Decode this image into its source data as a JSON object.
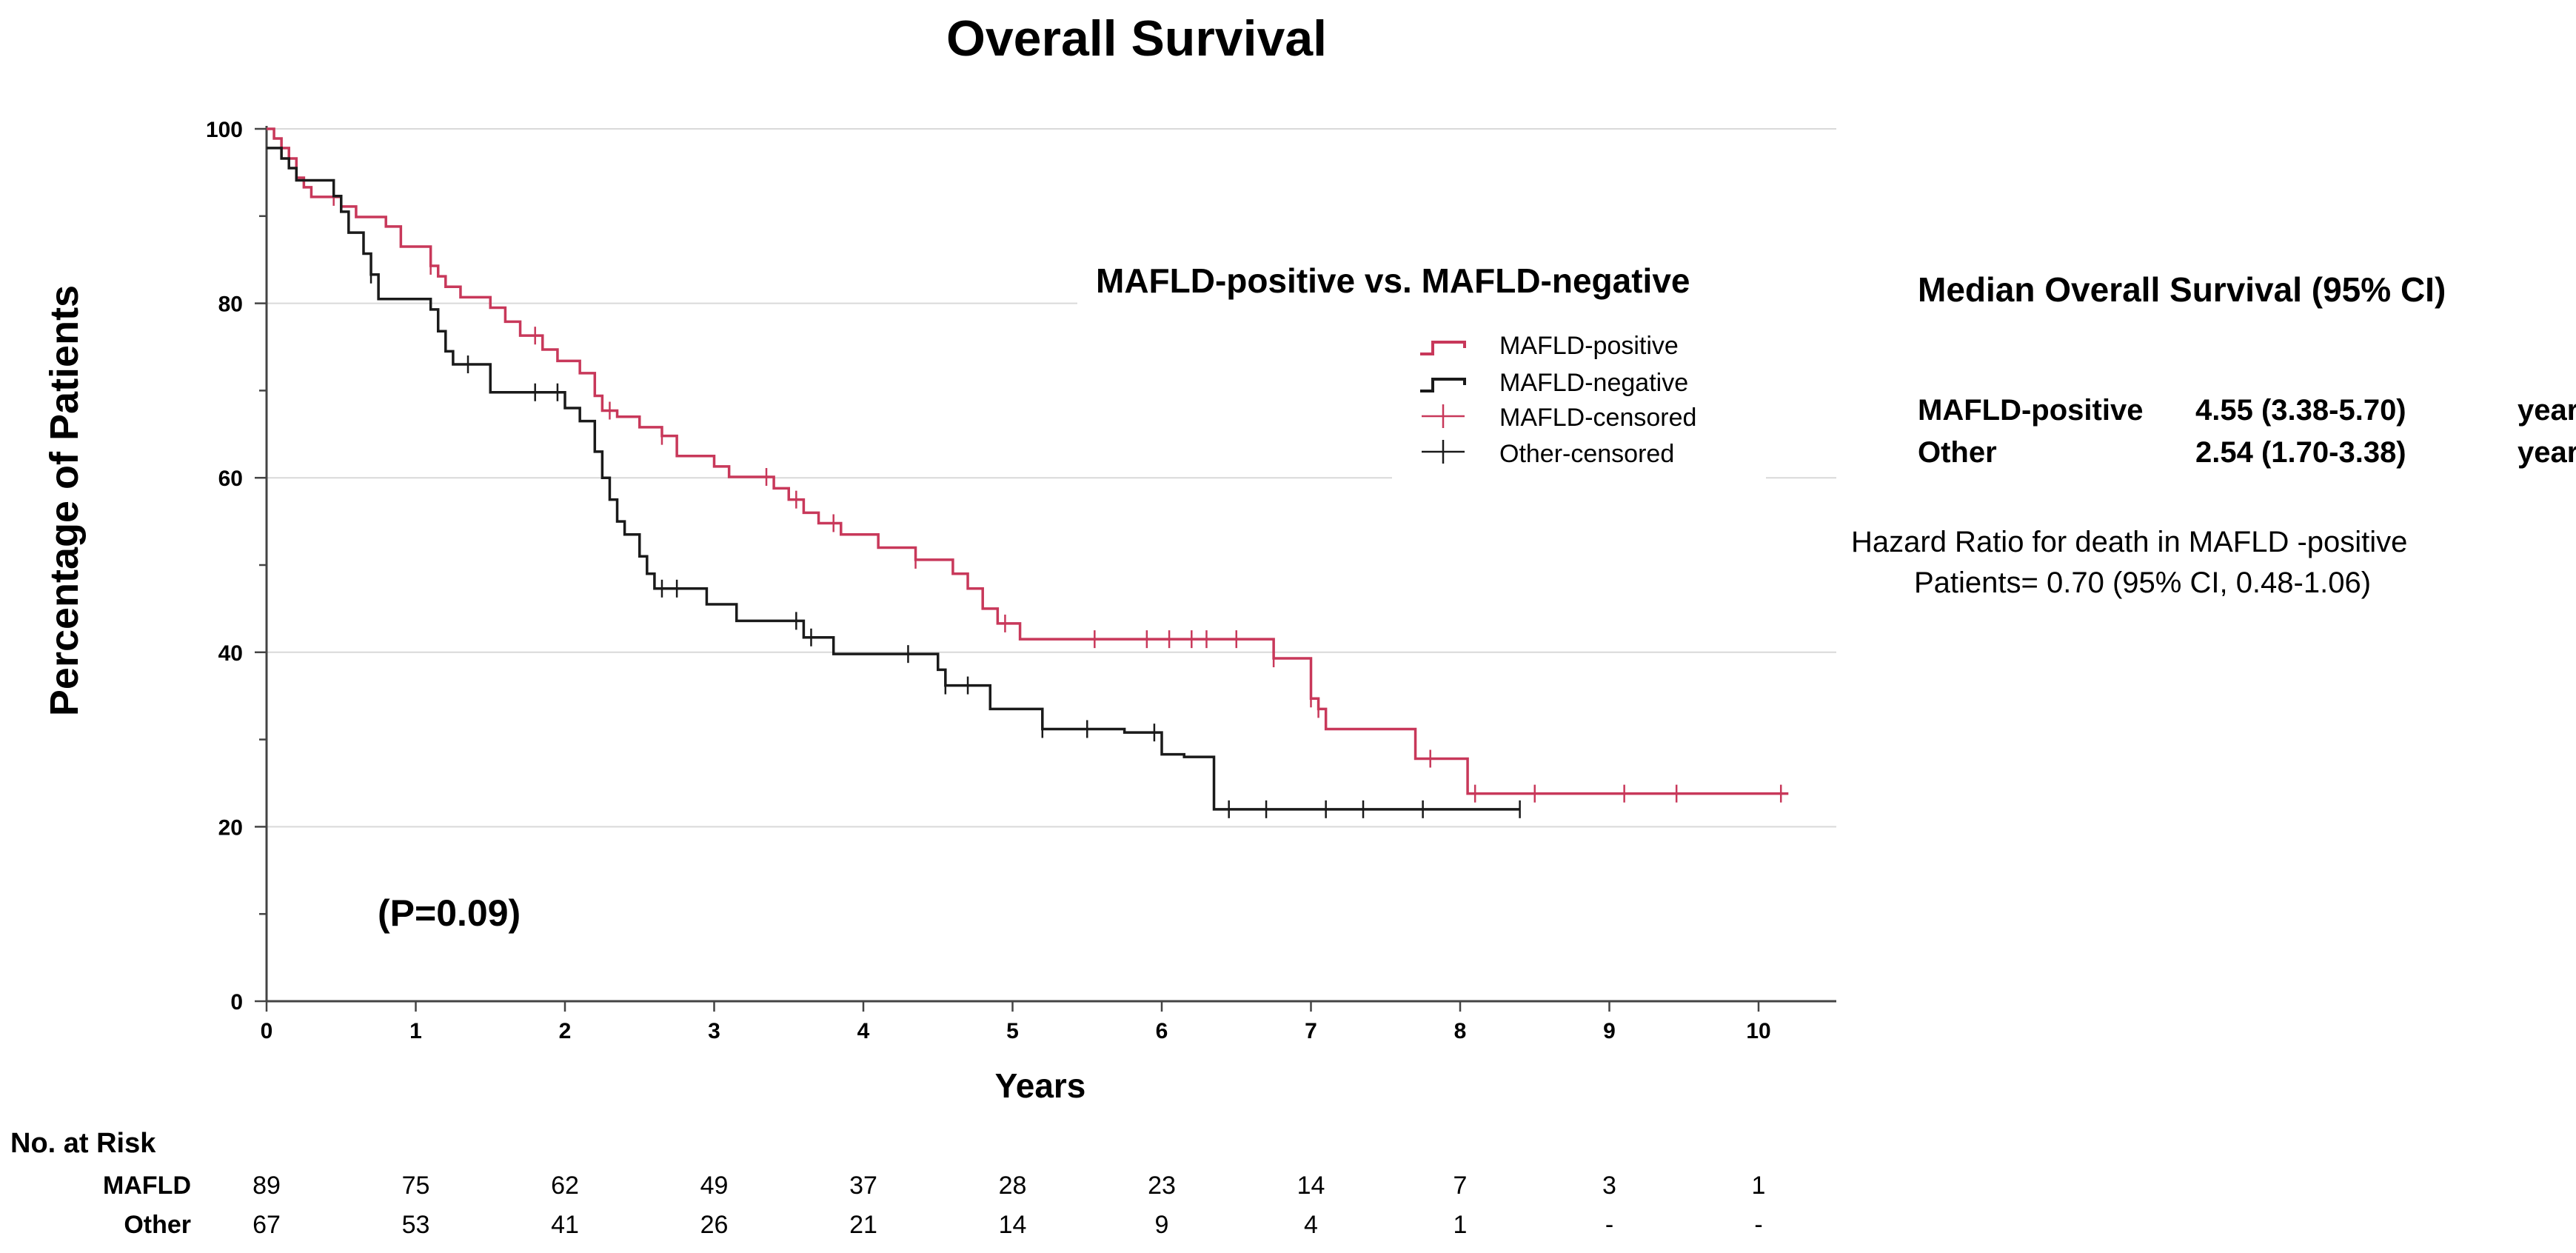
{
  "chart_data": {
    "type": "line",
    "title": "Overall Survival",
    "xlabel": "Years",
    "ylabel": "Percentage of Patients",
    "xlim": [
      0,
      10.5
    ],
    "ylim": [
      0,
      100
    ],
    "x_ticks": [
      "0",
      "1",
      "2",
      "3",
      "4",
      "5",
      "6",
      "7",
      "8",
      "9",
      "10"
    ],
    "y_ticks": [
      "0",
      "20",
      "40",
      "60",
      "80",
      "100"
    ],
    "grid": true,
    "legend": {
      "title": "MAFLD-positive vs. MAFLD-negative",
      "position": "top-right",
      "entries": [
        {
          "label": "MAFLD-positive",
          "kind": "step"
        },
        {
          "label": "MAFLD-negative",
          "kind": "step"
        },
        {
          "label": "MAFLD-censored",
          "kind": "censor"
        },
        {
          "label": "Other-censored",
          "kind": "censor"
        }
      ]
    },
    "series": [
      {
        "name": "MAFLD-positive",
        "color": "#c8385a",
        "steps": [
          [
            0,
            100
          ],
          [
            0.05,
            98.9
          ],
          [
            0.1,
            97.8
          ],
          [
            0.15,
            96.6
          ],
          [
            0.2,
            94.4
          ],
          [
            0.25,
            93.3
          ],
          [
            0.3,
            92.2
          ],
          [
            0.5,
            91.1
          ],
          [
            0.6,
            89.9
          ],
          [
            0.8,
            88.8
          ],
          [
            0.9,
            86.5
          ],
          [
            1.1,
            84.3
          ],
          [
            1.15,
            83.1
          ],
          [
            1.2,
            81.9
          ],
          [
            1.3,
            80.7
          ],
          [
            1.5,
            79.5
          ],
          [
            1.6,
            77.9
          ],
          [
            1.7,
            76.3
          ],
          [
            1.85,
            74.7
          ],
          [
            1.95,
            73.4
          ],
          [
            2.1,
            72.0
          ],
          [
            2.2,
            69.4
          ],
          [
            2.25,
            67.7
          ],
          [
            2.35,
            67.0
          ],
          [
            2.5,
            65.8
          ],
          [
            2.65,
            64.8
          ],
          [
            2.75,
            62.5
          ],
          [
            3.0,
            61.3
          ],
          [
            3.1,
            60.1
          ],
          [
            3.4,
            58.8
          ],
          [
            3.5,
            57.5
          ],
          [
            3.6,
            56.0
          ],
          [
            3.7,
            54.8
          ],
          [
            3.85,
            53.5
          ],
          [
            4.1,
            52.0
          ],
          [
            4.35,
            50.6
          ],
          [
            4.6,
            49.0
          ],
          [
            4.7,
            47.3
          ],
          [
            4.8,
            45.0
          ],
          [
            4.9,
            43.3
          ],
          [
            5.05,
            41.5
          ],
          [
            6.75,
            39.3
          ],
          [
            7.0,
            34.7
          ],
          [
            7.05,
            33.5
          ],
          [
            7.1,
            31.2
          ],
          [
            7.7,
            27.8
          ],
          [
            8.05,
            23.8
          ],
          [
            10.2,
            23.8
          ]
        ],
        "censored": [
          0.45,
          1.1,
          1.8,
          2.3,
          2.65,
          3.35,
          3.55,
          3.8,
          4.35,
          4.95,
          5.55,
          5.9,
          6.05,
          6.2,
          6.3,
          6.5,
          6.75,
          7.0,
          7.05,
          7.8,
          8.1,
          8.5,
          9.1,
          9.45,
          10.15
        ]
      },
      {
        "name": "MAFLD-negative",
        "color": "#1a1a1a",
        "steps": [
          [
            0,
            97.8
          ],
          [
            0.05,
            97.8
          ],
          [
            0.1,
            96.6
          ],
          [
            0.15,
            95.5
          ],
          [
            0.2,
            94.1
          ],
          [
            0.45,
            92.3
          ],
          [
            0.5,
            90.5
          ],
          [
            0.55,
            88.1
          ],
          [
            0.65,
            85.7
          ],
          [
            0.7,
            83.3
          ],
          [
            0.75,
            80.5
          ],
          [
            1.1,
            79.3
          ],
          [
            1.15,
            76.8
          ],
          [
            1.2,
            74.5
          ],
          [
            1.25,
            73.0
          ],
          [
            1.5,
            69.8
          ],
          [
            2.0,
            68.0
          ],
          [
            2.1,
            66.5
          ],
          [
            2.2,
            63.0
          ],
          [
            2.25,
            60.0
          ],
          [
            2.3,
            57.5
          ],
          [
            2.35,
            55.0
          ],
          [
            2.4,
            53.5
          ],
          [
            2.5,
            51.0
          ],
          [
            2.55,
            49.0
          ],
          [
            2.6,
            47.3
          ],
          [
            2.95,
            45.5
          ],
          [
            3.15,
            43.6
          ],
          [
            3.6,
            41.7
          ],
          [
            3.8,
            39.8
          ],
          [
            4.5,
            38.0
          ],
          [
            4.55,
            36.2
          ],
          [
            4.85,
            33.5
          ],
          [
            5.2,
            31.2
          ],
          [
            5.75,
            30.8
          ],
          [
            6.0,
            28.3
          ],
          [
            6.15,
            28.0
          ],
          [
            6.35,
            25.0
          ],
          [
            6.35,
            22.0
          ],
          [
            8.4,
            22.0
          ]
        ],
        "censored": [
          0.7,
          1.35,
          1.8,
          1.95,
          2.65,
          2.75,
          3.55,
          3.65,
          4.3,
          4.55,
          4.7,
          5.2,
          5.5,
          5.95,
          6.45,
          6.7,
          7.1,
          7.35,
          7.75,
          8.4
        ]
      }
    ],
    "annotations": {
      "p_value": "(P=0.09)",
      "median_title": "Median Overall Survival (95% CI)",
      "median_rows": [
        {
          "group": "MAFLD-positive",
          "value": "4.55 (3.38-5.70)",
          "unit": "years"
        },
        {
          "group": "Other",
          "value": "2.54 (1.70-3.38)",
          "unit": "years"
        }
      ],
      "hazard_line1": "Hazard Ratio for death in MAFLD -positive",
      "hazard_line2": "Patients= 0.70 (95% CI, 0.48-1.06)"
    },
    "risk_table": {
      "title": "No. at Risk",
      "rows": [
        {
          "label": "MAFLD",
          "values": [
            "89",
            "75",
            "62",
            "49",
            "37",
            "28",
            "23",
            "14",
            "7",
            "3",
            "1"
          ]
        },
        {
          "label": "Other",
          "values": [
            "67",
            "53",
            "41",
            "26",
            "21",
            "14",
            "9",
            "4",
            "1",
            "-",
            "-"
          ]
        }
      ]
    }
  }
}
